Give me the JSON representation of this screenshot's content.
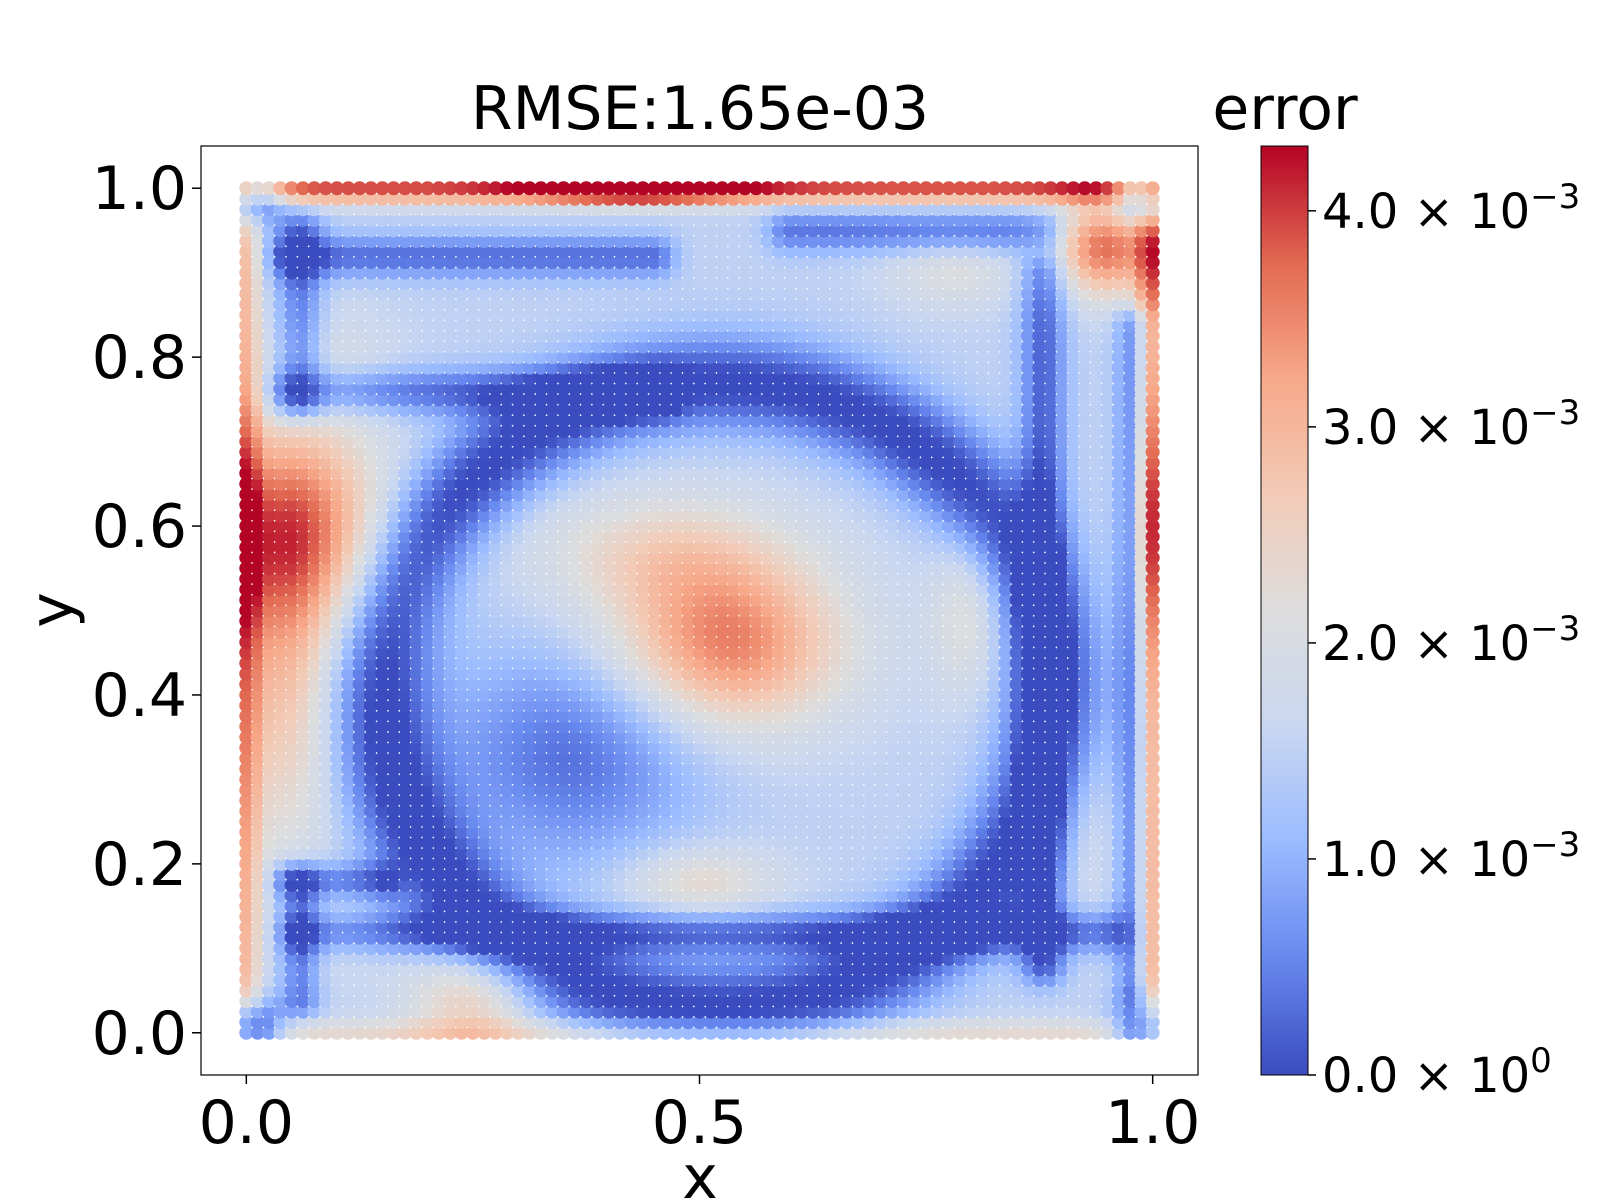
{
  "chart_data": {
    "type": "scatter",
    "title": "RMSE:1.65e-03",
    "xlabel": "x",
    "ylabel": "y",
    "xlim": [
      -0.05,
      1.05
    ],
    "ylim": [
      -0.05,
      1.05
    ],
    "x_ticks": [
      0.0,
      0.5,
      1.0
    ],
    "x_tick_labels": [
      "0.0",
      "0.5",
      "1.0"
    ],
    "y_ticks": [
      0.0,
      0.2,
      0.4,
      0.6,
      0.8,
      1.0
    ],
    "y_tick_labels": [
      "0.0",
      "0.2",
      "0.4",
      "0.6",
      "0.8",
      "1.0"
    ],
    "grid": false,
    "grid_points": 81,
    "colorbar": {
      "title": "error",
      "colormap": "coolwarm",
      "min": 0.0,
      "max": 0.0043,
      "ticks": [
        0.0,
        0.001,
        0.002,
        0.003,
        0.004
      ],
      "tick_labels": [
        {
          "mantissa": "0.0",
          "base": "10",
          "exp": "0"
        },
        {
          "mantissa": "1.0",
          "base": "10",
          "exp": "−3"
        },
        {
          "mantissa": "2.0",
          "base": "10",
          "exp": "−3"
        },
        {
          "mantissa": "3.0",
          "base": "10",
          "exp": "−3"
        },
        {
          "mantissa": "4.0",
          "base": "10",
          "exp": "−3"
        }
      ],
      "stops": [
        "#3b4cc0",
        "#6788ee",
        "#9abbff",
        "#c9d7f0",
        "#dddddd",
        "#f2cbb7",
        "#f7a889",
        "#e26952",
        "#b40426"
      ]
    },
    "error_field": {
      "description_units": "error value",
      "base": 0.0015,
      "components": [
        {
          "type": "ring",
          "cx": 0.52,
          "cy": 0.4,
          "r": 0.37,
          "width": 0.04,
          "amp": -0.0016
        },
        {
          "type": "blob",
          "cx": 0.36,
          "cy": 0.33,
          "sx": 0.1,
          "sy": 0.09,
          "amp": -0.0012
        },
        {
          "type": "blob",
          "cx": 0.53,
          "cy": 0.46,
          "sx": 0.09,
          "sy": 0.07,
          "amp": 0.0021
        },
        {
          "type": "blob",
          "cx": 0.46,
          "cy": 0.57,
          "sx": 0.1,
          "sy": 0.05,
          "amp": 0.0009
        },
        {
          "type": "blob",
          "cx": 0.05,
          "cy": 0.6,
          "sx": 0.07,
          "sy": 0.09,
          "amp": 0.0022
        },
        {
          "type": "blob",
          "cx": 0.04,
          "cy": 0.4,
          "sx": 0.04,
          "sy": 0.14,
          "amp": 0.0012
        },
        {
          "type": "blob",
          "cx": 0.95,
          "cy": 0.93,
          "sx": 0.04,
          "sy": 0.04,
          "amp": 0.0022
        },
        {
          "type": "blob",
          "cx": 0.78,
          "cy": 0.9,
          "sx": 0.05,
          "sy": 0.03,
          "amp": 0.0006
        },
        {
          "type": "blob",
          "cx": 0.8,
          "cy": 0.5,
          "sx": 0.03,
          "sy": 0.07,
          "amp": 0.0008
        },
        {
          "type": "blob",
          "cx": 0.25,
          "cy": 0.04,
          "sx": 0.05,
          "sy": 0.04,
          "amp": 0.0011
        },
        {
          "type": "blob",
          "cx": 0.5,
          "cy": 0.18,
          "sx": 0.06,
          "sy": 0.03,
          "amp": 0.0009
        },
        {
          "type": "blob",
          "cx": 0.92,
          "cy": 0.25,
          "sx": 0.03,
          "sy": 0.08,
          "amp": 0.0004
        },
        {
          "type": "blob",
          "cx": 0.1,
          "cy": 0.8,
          "sx": 0.05,
          "sy": 0.05,
          "amp": 0.0003
        },
        {
          "type": "blob",
          "cx": 0.1,
          "cy": 0.12,
          "sx": 0.04,
          "sy": 0.04,
          "amp": 0.0003
        },
        {
          "type": "hline",
          "x0": 0.06,
          "x1": 0.95,
          "y": 0.12,
          "width": 0.018,
          "amp": -0.0012
        },
        {
          "type": "vline",
          "x": 0.88,
          "y0": 0.08,
          "y1": 0.9,
          "width": 0.018,
          "amp": -0.0013
        },
        {
          "type": "vline",
          "x": 0.98,
          "y0": 0.05,
          "y1": 0.84,
          "width": 0.014,
          "amp": -0.0011
        },
        {
          "type": "hline",
          "x0": 0.05,
          "x1": 0.45,
          "y": 0.92,
          "width": 0.018,
          "amp": -0.0012
        },
        {
          "type": "vline",
          "x": 0.06,
          "y0": 0.75,
          "y1": 0.95,
          "width": 0.018,
          "amp": -0.0011
        },
        {
          "type": "hline",
          "x0": 0.05,
          "x1": 0.45,
          "y": 0.76,
          "width": 0.02,
          "amp": -0.0012
        },
        {
          "type": "hline",
          "x0": 0.6,
          "x1": 0.88,
          "y": 0.95,
          "width": 0.018,
          "amp": -0.0011
        },
        {
          "type": "vline",
          "x": 0.06,
          "y0": 0.04,
          "y1": 0.18,
          "width": 0.016,
          "amp": -0.0011
        },
        {
          "type": "hline",
          "x0": 0.05,
          "x1": 0.15,
          "y": 0.18,
          "width": 0.016,
          "amp": -0.0011
        }
      ],
      "edges": {
        "top": {
          "amp": 0.0024,
          "peak_x": 0.43,
          "peak_amp": 0.0018,
          "width": 0.012
        },
        "left": {
          "amp": 0.0014,
          "width": 0.012
        },
        "right": {
          "amp": 0.0018,
          "peak_y": 0.6,
          "peak_amp": 0.0012,
          "width": 0.012
        },
        "bottom": {
          "amp": 0.0008,
          "width": 0.012
        }
      }
    }
  }
}
